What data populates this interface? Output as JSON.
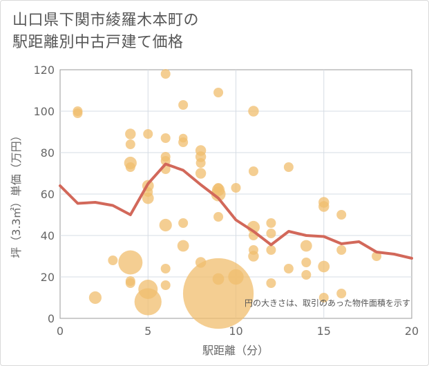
{
  "title_line1": "山口県下関市綾羅木本町の",
  "title_line2": "駅距離別中古戸建て価格",
  "chart_data": {
    "type": "scatter",
    "title": "山口県下関市綾羅木本町の駅距離別中古戸建て価格",
    "xlabel": "駅距離（分）",
    "ylabel": "坪（3.3㎡）単価（万円）",
    "xlim": [
      0,
      20
    ],
    "ylim": [
      0,
      120
    ],
    "xticks": [
      "0",
      "5",
      "10",
      "15",
      "20"
    ],
    "yticks": [
      "0",
      "20",
      "40",
      "60",
      "80",
      "100",
      "120"
    ],
    "grid": true,
    "annotation": "円の大きさは、取引のあった物件面積を示す",
    "point_color": "#f0bd6e",
    "line_color": "#d2685a",
    "points": [
      {
        "x": 1,
        "y": 100,
        "size": 1
      },
      {
        "x": 1,
        "y": 99,
        "size": 1
      },
      {
        "x": 2,
        "y": 10,
        "size": 1.3
      },
      {
        "x": 3,
        "y": 28,
        "size": 1
      },
      {
        "x": 4,
        "y": 89,
        "size": 1.1
      },
      {
        "x": 4,
        "y": 84,
        "size": 1
      },
      {
        "x": 4,
        "y": 75,
        "size": 1.3
      },
      {
        "x": 4,
        "y": 73,
        "size": 1
      },
      {
        "x": 4,
        "y": 27,
        "size": 2.5
      },
      {
        "x": 4,
        "y": 18,
        "size": 1
      },
      {
        "x": 4,
        "y": 17,
        "size": 1
      },
      {
        "x": 5,
        "y": 89,
        "size": 1
      },
      {
        "x": 5,
        "y": 64,
        "size": 1.2
      },
      {
        "x": 5,
        "y": 61,
        "size": 1
      },
      {
        "x": 5,
        "y": 58,
        "size": 1.2
      },
      {
        "x": 5,
        "y": 14,
        "size": 2
      },
      {
        "x": 5,
        "y": 8,
        "size": 2.8
      },
      {
        "x": 6,
        "y": 118,
        "size": 1
      },
      {
        "x": 6,
        "y": 87,
        "size": 1
      },
      {
        "x": 6,
        "y": 78,
        "size": 1
      },
      {
        "x": 6,
        "y": 76,
        "size": 1
      },
      {
        "x": 6,
        "y": 72,
        "size": 1
      },
      {
        "x": 6,
        "y": 45,
        "size": 1.3
      },
      {
        "x": 6,
        "y": 24,
        "size": 1
      },
      {
        "x": 6,
        "y": 16,
        "size": 1
      },
      {
        "x": 7,
        "y": 103,
        "size": 1
      },
      {
        "x": 7,
        "y": 87,
        "size": 0.9
      },
      {
        "x": 7,
        "y": 85,
        "size": 1
      },
      {
        "x": 7,
        "y": 46,
        "size": 1
      },
      {
        "x": 7,
        "y": 35,
        "size": 1.2
      },
      {
        "x": 8,
        "y": 81,
        "size": 1.1
      },
      {
        "x": 8,
        "y": 78,
        "size": 1.1
      },
      {
        "x": 8,
        "y": 75,
        "size": 1
      },
      {
        "x": 8,
        "y": 70,
        "size": 1.1
      },
      {
        "x": 8,
        "y": 27,
        "size": 1.1
      },
      {
        "x": 9,
        "y": 109,
        "size": 1
      },
      {
        "x": 9,
        "y": 63,
        "size": 1
      },
      {
        "x": 9,
        "y": 62,
        "size": 1.3
      },
      {
        "x": 9,
        "y": 60,
        "size": 1.5
      },
      {
        "x": 9,
        "y": 49,
        "size": 1
      },
      {
        "x": 9,
        "y": 19,
        "size": 1.2
      },
      {
        "x": 9,
        "y": 12,
        "size": 7.3
      },
      {
        "x": 10,
        "y": 63,
        "size": 1
      },
      {
        "x": 10,
        "y": 20,
        "size": 1.6
      },
      {
        "x": 11,
        "y": 100,
        "size": 1.1
      },
      {
        "x": 11,
        "y": 71,
        "size": 1
      },
      {
        "x": 11,
        "y": 44,
        "size": 1.3
      },
      {
        "x": 11,
        "y": 40,
        "size": 1
      },
      {
        "x": 11,
        "y": 33,
        "size": 1
      },
      {
        "x": 11,
        "y": 30,
        "size": 1.1
      },
      {
        "x": 12,
        "y": 46,
        "size": 1
      },
      {
        "x": 12,
        "y": 41,
        "size": 1
      },
      {
        "x": 12,
        "y": 33,
        "size": 1
      },
      {
        "x": 12,
        "y": 17,
        "size": 1
      },
      {
        "x": 13,
        "y": 73,
        "size": 1
      },
      {
        "x": 13,
        "y": 24,
        "size": 1
      },
      {
        "x": 14,
        "y": 35,
        "size": 1.2
      },
      {
        "x": 14,
        "y": 27,
        "size": 1
      },
      {
        "x": 14,
        "y": 21,
        "size": 1
      },
      {
        "x": 15,
        "y": 56,
        "size": 1.1
      },
      {
        "x": 15,
        "y": 54,
        "size": 1.1
      },
      {
        "x": 15,
        "y": 25,
        "size": 1.2
      },
      {
        "x": 15,
        "y": 10,
        "size": 1
      },
      {
        "x": 16,
        "y": 50,
        "size": 1
      },
      {
        "x": 16,
        "y": 33,
        "size": 1
      },
      {
        "x": 16,
        "y": 12,
        "size": 1
      },
      {
        "x": 18,
        "y": 30,
        "size": 1
      }
    ],
    "line": {
      "x": [
        0,
        1,
        2,
        3,
        4,
        5,
        6,
        7,
        8,
        9,
        10,
        11,
        12,
        13,
        14,
        15,
        16,
        17,
        18,
        19,
        20
      ],
      "y": [
        64,
        55.5,
        56,
        54.5,
        50,
        65,
        74.5,
        71.5,
        64.5,
        58,
        47.5,
        42,
        35.5,
        42,
        40,
        39.5,
        36,
        37,
        32,
        31,
        29
      ]
    }
  }
}
